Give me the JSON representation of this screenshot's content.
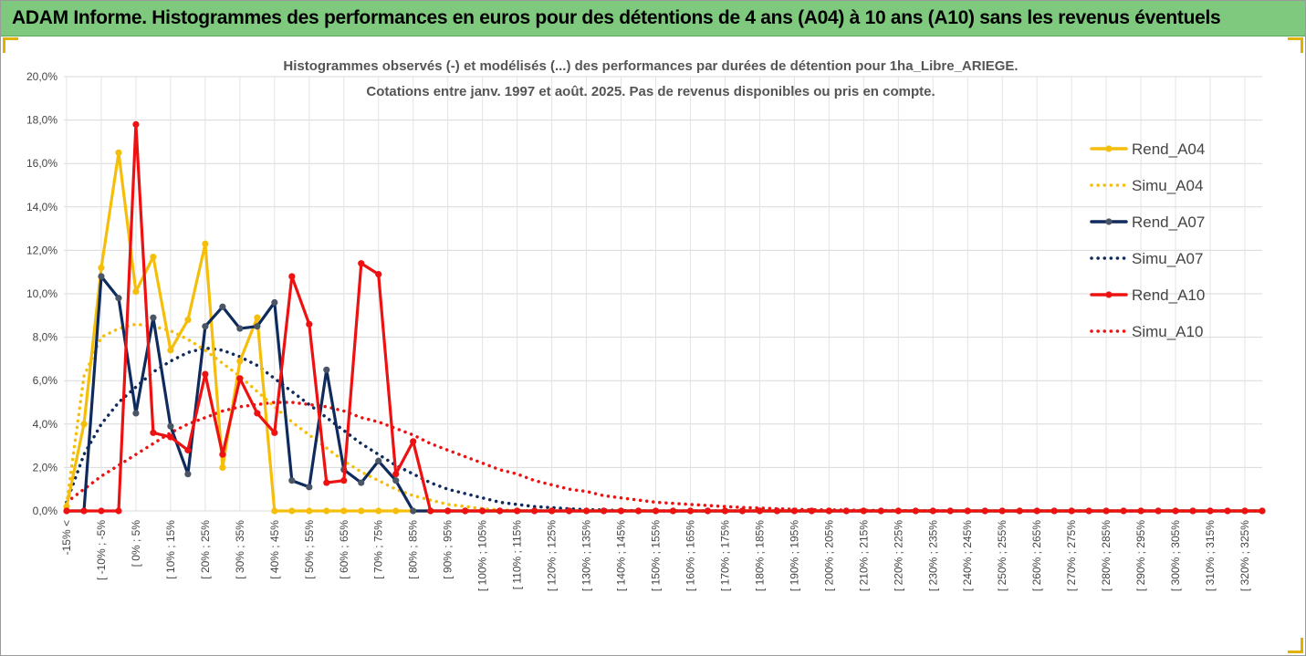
{
  "banner": {
    "title": "ADAM Informe. Histogrammes des performances en euros pour des détentions de 4 ans (A04) à 10 ans (A10) sans les revenus éventuels"
  },
  "colors": {
    "banner_bg": "#7ec97e",
    "A04": "#f5be0a",
    "A07": "#0f2a5c",
    "A10": "#ee1111",
    "grid": "#d9d9d9"
  },
  "chart_data": {
    "type": "line",
    "title": "Histogrammes observés (-)  et modélisés (...)  des performances par durées de détention pour 1ha_Libre_ARIEGE.",
    "subtitle": "Cotations entre janv. 1997 et août. 2025. Pas de revenus disponibles ou pris en compte.",
    "xlabel": "",
    "ylabel": "",
    "ylim": [
      0,
      0.2
    ],
    "yticks": [
      "0,0%",
      "2,0%",
      "4,0%",
      "6,0%",
      "8,0%",
      "10,0%",
      "12,0%",
      "14,0%",
      "16,0%",
      "18,0%",
      "20,0%"
    ],
    "grid": true,
    "legend_position": "right",
    "bins": 70,
    "xtick_labels": [
      "-15% <",
      "[ -10% ; -5%",
      "[ 0% ; 5%",
      "[ 10% ; 15%",
      "[ 20% ; 25%",
      "[ 30% ; 35%",
      "[ 40% ; 45%",
      "[ 50% ; 55%",
      "[ 60% ; 65%",
      "[ 70% ; 75%",
      "[ 80% ; 85%",
      "[ 90% ; 95%",
      "[ 100% ; 105%",
      "[ 110% ; 115%",
      "[ 120% ; 125%",
      "[ 130% ; 135%",
      "[ 140% ; 145%",
      "[ 150% ; 155%",
      "[ 160% ; 165%",
      "[ 170% ; 175%",
      "[ 180% ; 185%",
      "[ 190% ; 195%",
      "[ 200% ; 205%",
      "[ 210% ; 215%",
      "[ 220% ; 225%",
      "[ 230% ; 235%",
      "[ 240% ; 245%",
      "[ 250% ; 255%",
      "[ 260% ; 265%",
      "[ 270% ; 275%",
      "[ 280% ; 285%",
      "[ 290% ; 295%",
      "[ 300% ; 305%",
      "[ 310% ; 315%",
      "[ 320% ; 325%"
    ],
    "series": [
      {
        "name": "Rend_A04",
        "style": "solid",
        "color": "#f5be0a",
        "values": [
          0.002,
          0.04,
          0.112,
          0.165,
          0.101,
          0.117,
          0.074,
          0.088,
          0.123,
          0.02,
          0.069,
          0.089,
          0.0,
          0.0,
          0.0,
          0.0,
          0.0,
          0.0,
          0.0,
          0.0,
          0.0,
          0.0,
          0.0,
          0.0,
          0.0,
          0.0,
          0.0,
          0.0,
          0.0,
          0.0,
          0.0,
          0.0,
          0.0,
          0.0,
          0.0,
          0.0,
          0.0,
          0.0,
          0.0,
          0.0,
          0.0,
          0.0,
          0.0,
          0.0,
          0.0,
          0.0,
          0.0,
          0.0,
          0.0,
          0.0,
          0.0,
          0.0,
          0.0,
          0.0,
          0.0,
          0.0,
          0.0,
          0.0,
          0.0,
          0.0,
          0.0,
          0.0,
          0.0,
          0.0,
          0.0,
          0.0,
          0.0,
          0.0,
          0.0,
          0.0
        ]
      },
      {
        "name": "Simu_A04",
        "style": "dotted",
        "color": "#f5be0a",
        "values": [
          0.003,
          0.062,
          0.08,
          0.084,
          0.086,
          0.085,
          0.083,
          0.079,
          0.074,
          0.068,
          0.062,
          0.055,
          0.048,
          0.041,
          0.035,
          0.029,
          0.023,
          0.018,
          0.014,
          0.01,
          0.007,
          0.005,
          0.003,
          0.002,
          0.001,
          0.0005,
          0.0002,
          0.0001,
          0.0,
          0.0,
          0.0,
          0.0,
          0.0,
          0.0,
          0.0,
          0.0,
          0.0,
          0.0,
          0.0,
          0.0,
          0.0,
          0.0,
          0.0,
          0.0,
          0.0,
          0.0,
          0.0,
          0.0,
          0.0,
          0.0,
          0.0,
          0.0,
          0.0,
          0.0,
          0.0,
          0.0,
          0.0,
          0.0,
          0.0,
          0.0,
          0.0,
          0.0,
          0.0,
          0.0,
          0.0,
          0.0,
          0.0,
          0.0,
          0.0,
          0.0
        ]
      },
      {
        "name": "Rend_A07",
        "style": "solid",
        "color": "#0f2a5c",
        "values": [
          0.0,
          0.0,
          0.108,
          0.098,
          0.045,
          0.089,
          0.039,
          0.017,
          0.085,
          0.094,
          0.084,
          0.085,
          0.096,
          0.014,
          0.011,
          0.065,
          0.019,
          0.013,
          0.023,
          0.014,
          0.0,
          0.0,
          0.0,
          0.0,
          0.0,
          0.0,
          0.0,
          0.0,
          0.0,
          0.0,
          0.0,
          0.0,
          0.0,
          0.0,
          0.0,
          0.0,
          0.0,
          0.0,
          0.0,
          0.0,
          0.0,
          0.0,
          0.0,
          0.0,
          0.0,
          0.0,
          0.0,
          0.0,
          0.0,
          0.0,
          0.0,
          0.0,
          0.0,
          0.0,
          0.0,
          0.0,
          0.0,
          0.0,
          0.0,
          0.0,
          0.0,
          0.0,
          0.0,
          0.0,
          0.0,
          0.0,
          0.0,
          0.0,
          0.0,
          0.0
        ]
      },
      {
        "name": "Simu_A07",
        "style": "dotted",
        "color": "#0f2a5c",
        "values": [
          0.004,
          0.026,
          0.04,
          0.05,
          0.057,
          0.064,
          0.069,
          0.073,
          0.075,
          0.074,
          0.071,
          0.067,
          0.061,
          0.055,
          0.049,
          0.043,
          0.037,
          0.031,
          0.026,
          0.021,
          0.017,
          0.013,
          0.01,
          0.008,
          0.006,
          0.004,
          0.003,
          0.002,
          0.0015,
          0.001,
          0.0006,
          0.0004,
          0.0002,
          0.0001,
          0.0,
          0.0,
          0.0,
          0.0,
          0.0,
          0.0,
          0.0,
          0.0,
          0.0,
          0.0,
          0.0,
          0.0,
          0.0,
          0.0,
          0.0,
          0.0,
          0.0,
          0.0,
          0.0,
          0.0,
          0.0,
          0.0,
          0.0,
          0.0,
          0.0,
          0.0,
          0.0,
          0.0,
          0.0,
          0.0,
          0.0,
          0.0,
          0.0,
          0.0,
          0.0,
          0.0
        ]
      },
      {
        "name": "Rend_A10",
        "style": "solid",
        "color": "#ee1111",
        "values": [
          0.0,
          0.0,
          0.0,
          0.0,
          0.178,
          0.036,
          0.034,
          0.028,
          0.063,
          0.026,
          0.061,
          0.045,
          0.036,
          0.108,
          0.086,
          0.013,
          0.014,
          0.114,
          0.109,
          0.017,
          0.032,
          0.0,
          0.0,
          0.0,
          0.0,
          0.0,
          0.0,
          0.0,
          0.0,
          0.0,
          0.0,
          0.0,
          0.0,
          0.0,
          0.0,
          0.0,
          0.0,
          0.0,
          0.0,
          0.0,
          0.0,
          0.0,
          0.0,
          0.0,
          0.0,
          0.0,
          0.0,
          0.0,
          0.0,
          0.0,
          0.0,
          0.0,
          0.0,
          0.0,
          0.0,
          0.0,
          0.0,
          0.0,
          0.0,
          0.0,
          0.0,
          0.0,
          0.0,
          0.0,
          0.0,
          0.0,
          0.0,
          0.0,
          0.0,
          0.0
        ]
      },
      {
        "name": "Simu_A10",
        "style": "dotted",
        "color": "#ee1111",
        "values": [
          0.004,
          0.01,
          0.016,
          0.021,
          0.026,
          0.031,
          0.036,
          0.04,
          0.043,
          0.046,
          0.048,
          0.049,
          0.05,
          0.05,
          0.049,
          0.048,
          0.046,
          0.043,
          0.041,
          0.038,
          0.035,
          0.031,
          0.028,
          0.025,
          0.022,
          0.019,
          0.017,
          0.014,
          0.012,
          0.01,
          0.009,
          0.007,
          0.006,
          0.005,
          0.004,
          0.0035,
          0.003,
          0.0025,
          0.002,
          0.0016,
          0.0013,
          0.001,
          0.0008,
          0.0006,
          0.0005,
          0.0004,
          0.0003,
          0.0002,
          0.0002,
          0.0001,
          0.0001,
          0.0,
          0.0,
          0.0,
          0.0,
          0.0,
          0.0,
          0.0,
          0.0,
          0.0,
          0.0,
          0.0,
          0.0,
          0.0,
          0.0,
          0.0,
          0.0,
          0.0,
          0.0,
          0.0
        ]
      }
    ]
  }
}
